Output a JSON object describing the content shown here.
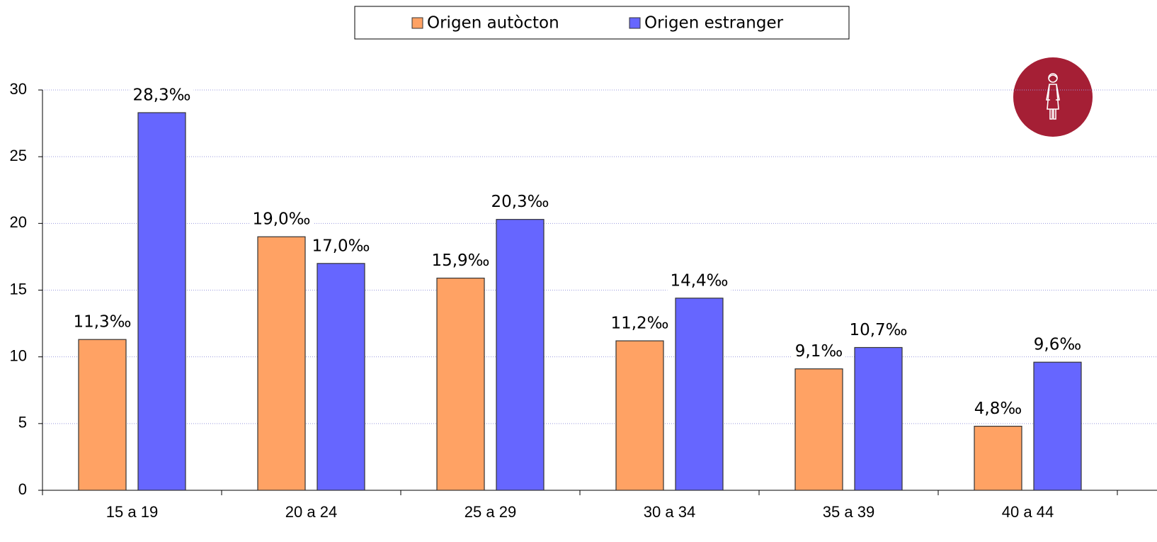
{
  "chart_data": {
    "type": "bar",
    "categories": [
      "15 a 19",
      "20 a 24",
      "25 a 29",
      "30 a 34",
      "35 a 39",
      "40 a 44"
    ],
    "series": [
      {
        "name": "Origen autòcton",
        "color": "#ffa264",
        "values": [
          11.3,
          19.0,
          15.9,
          11.2,
          9.1,
          4.8
        ],
        "value_labels": [
          "11,3‰",
          "19,0‰",
          "15,9‰",
          "11,2‰",
          "9,1‰",
          "4,8‰"
        ]
      },
      {
        "name": "Origen estranger",
        "color": "#6666ff",
        "values": [
          28.3,
          17.0,
          20.3,
          14.4,
          10.7,
          9.6
        ],
        "value_labels": [
          "28,3‰",
          "17,0‰",
          "20,3‰",
          "14,4‰",
          "10,7‰",
          "9,6‰"
        ]
      }
    ],
    "ylim": [
      0,
      30
    ],
    "yticks": [
      0,
      5,
      10,
      15,
      20,
      25,
      30
    ],
    "grid": true,
    "legend": "top"
  }
}
